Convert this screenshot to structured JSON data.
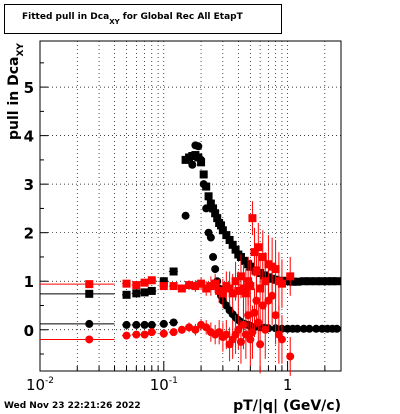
{
  "chart_data": {
    "type": "scatter",
    "title": "Fitted pull in Dca",
    "title_sub": "XY",
    "title_suffix": " for Global Rec All EtapT",
    "ylabel": "pull in Dca",
    "ylabel_sub": "XY",
    "xlabel": "pT/|q| (GeV/c)",
    "xscale": "log",
    "xlim": [
      0.01,
      2.7
    ],
    "ylim": [
      -0.85,
      5.95
    ],
    "grid": true,
    "y_ticks": [
      0,
      1,
      2,
      3,
      4,
      5
    ],
    "x_tick_labels": [
      {
        "v": 0.01,
        "t": "10",
        "e": "-2"
      },
      {
        "v": 0.1,
        "t": "10",
        "e": "-1"
      },
      {
        "v": 1,
        "t": "1",
        "e": ""
      }
    ],
    "series": [
      {
        "color": "#000000",
        "marker": "square",
        "points": [
          [
            0.025,
            0.74,
            0.015
          ],
          [
            0.05,
            0.72,
            0.004
          ],
          [
            0.06,
            0.75,
            0.005
          ],
          [
            0.07,
            0.77,
            0.006
          ],
          [
            0.08,
            0.8,
            0.007
          ],
          [
            0.1,
            1.0,
            0.008
          ],
          [
            0.12,
            1.2,
            0.01
          ],
          [
            0.15,
            3.5,
            0.004
          ],
          [
            0.16,
            3.55,
            0.004
          ],
          [
            0.17,
            3.58,
            0.004
          ],
          [
            0.18,
            3.6,
            0.004
          ],
          [
            0.19,
            3.55,
            0.004
          ],
          [
            0.2,
            3.45,
            0.004
          ],
          [
            0.21,
            3.2,
            0.004
          ],
          [
            0.22,
            2.95,
            0.004
          ],
          [
            0.23,
            2.75,
            0.004
          ],
          [
            0.24,
            2.6,
            0.004
          ],
          [
            0.25,
            2.5,
            0.004
          ],
          [
            0.26,
            2.4,
            0.004
          ],
          [
            0.27,
            2.3,
            0.004
          ],
          [
            0.28,
            2.2,
            0.004
          ],
          [
            0.29,
            2.15,
            0.004
          ],
          [
            0.3,
            2.05,
            0.004
          ],
          [
            0.32,
            1.95,
            0.004
          ],
          [
            0.34,
            1.85,
            0.004
          ],
          [
            0.36,
            1.75,
            0.004
          ],
          [
            0.38,
            1.65,
            0.004
          ],
          [
            0.4,
            1.55,
            0.004
          ],
          [
            0.42,
            1.5,
            0.004
          ],
          [
            0.45,
            1.42,
            0.004
          ],
          [
            0.48,
            1.35,
            0.004
          ],
          [
            0.5,
            1.3,
            0.004
          ],
          [
            0.55,
            1.22,
            0.004
          ],
          [
            0.6,
            1.17,
            0.004
          ],
          [
            0.65,
            1.12,
            0.004
          ],
          [
            0.7,
            1.08,
            0.004
          ],
          [
            0.75,
            1.05,
            0.004
          ],
          [
            0.8,
            1.03,
            0.004
          ],
          [
            0.9,
            1.01,
            0.004
          ],
          [
            1.0,
            1.0,
            0.004
          ],
          [
            1.1,
            0.99,
            0.004
          ],
          [
            1.2,
            0.99,
            0.004
          ],
          [
            1.35,
            1.0,
            0.004
          ],
          [
            1.5,
            1.0,
            0.004
          ],
          [
            1.7,
            1.0,
            0.004
          ],
          [
            1.9,
            1.0,
            0.004
          ],
          [
            2.1,
            1.0,
            0.004
          ],
          [
            2.3,
            1.0,
            0.004
          ],
          [
            2.5,
            1.0,
            0.004
          ]
        ]
      },
      {
        "color": "#000000",
        "marker": "circle",
        "points": [
          [
            0.025,
            0.12,
            0.015
          ],
          [
            0.05,
            0.1,
            0.004
          ],
          [
            0.06,
            0.1,
            0.005
          ],
          [
            0.07,
            0.1,
            0.006
          ],
          [
            0.08,
            0.1,
            0.007
          ],
          [
            0.1,
            0.12,
            0.008
          ],
          [
            0.12,
            0.15,
            0.01
          ],
          [
            0.15,
            2.35,
            0.004
          ],
          [
            0.17,
            3.4,
            0.004
          ],
          [
            0.18,
            3.8,
            0.004
          ],
          [
            0.19,
            3.78,
            0.004
          ],
          [
            0.2,
            3.5,
            0.004
          ],
          [
            0.21,
            3.0,
            0.004
          ],
          [
            0.22,
            2.5,
            0.004
          ],
          [
            0.23,
            2.0,
            0.004
          ],
          [
            0.24,
            1.9,
            0.004
          ],
          [
            0.25,
            1.5,
            0.004
          ],
          [
            0.26,
            1.25,
            0.004
          ],
          [
            0.27,
            1.0,
            0.004
          ],
          [
            0.28,
            0.85,
            0.004
          ],
          [
            0.29,
            0.7,
            0.004
          ],
          [
            0.3,
            0.6,
            0.004
          ],
          [
            0.32,
            0.5,
            0.004
          ],
          [
            0.34,
            0.4,
            0.004
          ],
          [
            0.36,
            0.32,
            0.004
          ],
          [
            0.38,
            0.25,
            0.004
          ],
          [
            0.4,
            0.2,
            0.004
          ],
          [
            0.42,
            0.16,
            0.004
          ],
          [
            0.45,
            0.12,
            0.004
          ],
          [
            0.48,
            0.1,
            0.004
          ],
          [
            0.5,
            0.08,
            0.004
          ],
          [
            0.55,
            0.06,
            0.004
          ],
          [
            0.6,
            0.05,
            0.004
          ],
          [
            0.65,
            0.04,
            0.004
          ],
          [
            0.7,
            0.03,
            0.004
          ],
          [
            0.8,
            0.03,
            0.004
          ],
          [
            0.9,
            0.02,
            0.004
          ],
          [
            1.0,
            0.02,
            0.004
          ],
          [
            1.1,
            0.02,
            0.004
          ],
          [
            1.2,
            0.02,
            0.004
          ],
          [
            1.35,
            0.02,
            0.004
          ],
          [
            1.5,
            0.02,
            0.004
          ],
          [
            1.7,
            0.02,
            0.004
          ],
          [
            1.9,
            0.02,
            0.004
          ],
          [
            2.1,
            0.02,
            0.004
          ],
          [
            2.3,
            0.02,
            0.004
          ],
          [
            2.5,
            0.02,
            0.004
          ]
        ]
      },
      {
        "color": "#ff0000",
        "marker": "square",
        "points": [
          [
            0.025,
            0.94,
            0.015,
            0.0
          ],
          [
            0.05,
            0.95,
            0.004,
            0.04
          ],
          [
            0.06,
            0.92,
            0.005,
            0.05
          ],
          [
            0.07,
            0.97,
            0.006,
            0.05
          ],
          [
            0.08,
            1.02,
            0.007,
            0.06
          ],
          [
            0.1,
            0.9,
            0.008,
            0.05
          ],
          [
            0.12,
            0.9,
            0.01,
            0.06
          ],
          [
            0.14,
            0.85,
            0.004,
            0.08
          ],
          [
            0.16,
            0.92,
            0.004,
            0.1
          ],
          [
            0.18,
            0.9,
            0.004,
            0.12
          ],
          [
            0.2,
            0.95,
            0.004,
            0.12
          ],
          [
            0.22,
            0.85,
            0.004,
            0.15
          ],
          [
            0.24,
            0.9,
            0.004,
            0.2
          ],
          [
            0.26,
            0.95,
            0.004,
            0.2
          ],
          [
            0.28,
            0.8,
            0.004,
            0.25
          ],
          [
            0.3,
            0.75,
            0.004,
            0.3
          ],
          [
            0.32,
            0.9,
            0.004,
            0.3
          ],
          [
            0.34,
            0.85,
            0.004,
            0.35
          ],
          [
            0.36,
            0.75,
            0.004,
            0.4
          ],
          [
            0.38,
            1.0,
            0.004,
            0.4
          ],
          [
            0.4,
            0.8,
            0.004,
            0.4
          ],
          [
            0.42,
            1.1,
            0.004,
            0.45
          ],
          [
            0.44,
            0.85,
            0.004,
            0.5
          ],
          [
            0.46,
            0.75,
            0.004,
            0.5
          ],
          [
            0.48,
            1.0,
            0.004,
            0.5
          ],
          [
            0.5,
            0.9,
            0.004,
            0.55
          ],
          [
            0.52,
            2.3,
            0.004,
            0.35
          ],
          [
            0.54,
            1.6,
            0.004,
            0.5
          ],
          [
            0.56,
            1.2,
            0.004,
            0.55
          ],
          [
            0.58,
            1.7,
            0.004,
            0.5
          ],
          [
            0.6,
            0.85,
            0.004,
            0.6
          ],
          [
            0.63,
            1.5,
            0.004,
            0.55
          ],
          [
            0.66,
            1.0,
            0.004,
            0.6
          ],
          [
            0.7,
            1.35,
            0.004,
            0.6
          ],
          [
            0.75,
            1.3,
            0.004,
            0.6
          ],
          [
            0.8,
            1.25,
            0.004,
            0.6
          ],
          [
            0.85,
            1.0,
            0.004,
            0.6
          ],
          [
            0.9,
            0.95,
            0.004,
            0.5
          ],
          [
            1.05,
            1.1,
            0.004,
            0.4
          ]
        ]
      },
      {
        "color": "#ff0000",
        "marker": "circle",
        "points": [
          [
            0.025,
            -0.2,
            0.015,
            0.0
          ],
          [
            0.05,
            -0.12,
            0.004,
            0.04
          ],
          [
            0.06,
            -0.1,
            0.005,
            0.05
          ],
          [
            0.07,
            -0.1,
            0.006,
            0.05
          ],
          [
            0.08,
            -0.05,
            0.007,
            0.06
          ],
          [
            0.1,
            -0.08,
            0.008,
            0.05
          ],
          [
            0.12,
            -0.05,
            0.01,
            0.06
          ],
          [
            0.14,
            0.0,
            0.004,
            0.08
          ],
          [
            0.16,
            0.05,
            0.004,
            0.1
          ],
          [
            0.18,
            0.0,
            0.004,
            0.12
          ],
          [
            0.2,
            0.1,
            0.004,
            0.12
          ],
          [
            0.22,
            0.05,
            0.004,
            0.15
          ],
          [
            0.24,
            -0.05,
            0.004,
            0.2
          ],
          [
            0.26,
            -0.1,
            0.004,
            0.2
          ],
          [
            0.28,
            -0.05,
            0.004,
            0.25
          ],
          [
            0.3,
            -0.15,
            0.004,
            0.3
          ],
          [
            0.32,
            -0.1,
            0.004,
            0.3
          ],
          [
            0.34,
            -0.3,
            0.004,
            0.35
          ],
          [
            0.36,
            -0.2,
            0.004,
            0.4
          ],
          [
            0.38,
            -0.1,
            0.004,
            0.4
          ],
          [
            0.4,
            0.0,
            0.004,
            0.4
          ],
          [
            0.42,
            -0.25,
            0.004,
            0.45
          ],
          [
            0.44,
            0.1,
            0.004,
            0.5
          ],
          [
            0.46,
            -0.1,
            0.004,
            0.5
          ],
          [
            0.48,
            0.3,
            0.004,
            0.5
          ],
          [
            0.5,
            -0.2,
            0.004,
            0.55
          ],
          [
            0.52,
            -0.05,
            0.004,
            0.55
          ],
          [
            0.54,
            0.35,
            0.004,
            0.5
          ],
          [
            0.56,
            0.6,
            0.004,
            0.55
          ],
          [
            0.58,
            0.15,
            0.004,
            0.5
          ],
          [
            0.6,
            -0.3,
            0.004,
            0.6
          ],
          [
            0.63,
            0.5,
            0.004,
            0.55
          ],
          [
            0.66,
            0.0,
            0.004,
            0.6
          ],
          [
            0.7,
            0.6,
            0.004,
            0.6
          ],
          [
            0.75,
            0.7,
            0.004,
            0.6
          ],
          [
            0.8,
            0.3,
            0.004,
            0.6
          ],
          [
            0.85,
            -0.1,
            0.004,
            0.6
          ],
          [
            0.9,
            -0.2,
            0.004,
            0.5
          ],
          [
            1.05,
            -0.55,
            0.004,
            0.4
          ]
        ]
      }
    ]
  },
  "footer": {
    "timestamp": "Wed Nov 23 22:21:26 2022"
  }
}
